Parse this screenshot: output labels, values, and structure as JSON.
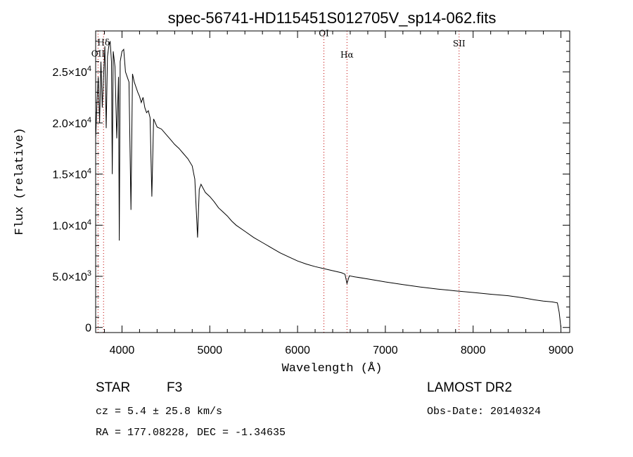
{
  "chart_data": {
    "type": "line",
    "title": "spec-56741-HD115451S012705V_sp14-062.fits",
    "xlabel": "Wavelength (Å)",
    "ylabel": "Flux (relative)",
    "xlim": [
      3700,
      9100
    ],
    "ylim": [
      -500,
      29000
    ],
    "x_ticks": [
      {
        "value": 4000,
        "label": "4000"
      },
      {
        "value": 5000,
        "label": "5000"
      },
      {
        "value": 6000,
        "label": "6000"
      },
      {
        "value": 7000,
        "label": "7000"
      },
      {
        "value": 8000,
        "label": "8000"
      },
      {
        "value": 9000,
        "label": "9000"
      }
    ],
    "y_ticks": [
      {
        "value": 0,
        "label": "0"
      },
      {
        "value": 5000,
        "label": "5.0×10",
        "exp": "3"
      },
      {
        "value": 10000,
        "label": "1.0×10",
        "exp": "4"
      },
      {
        "value": 15000,
        "label": "1.5×10",
        "exp": "4"
      },
      {
        "value": 20000,
        "label": "2.0×10",
        "exp": "4"
      },
      {
        "value": 25000,
        "label": "2.5×10",
        "exp": "4"
      }
    ],
    "grid": false,
    "lines": [
      {
        "label": "OII",
        "wavelength": 3727,
        "label_level": 26500
      },
      {
        "label": "Hδ",
        "wavelength": 3790,
        "label_level": 27600
      },
      {
        "label": "OI",
        "wavelength": 6300,
        "label_level": 28500
      },
      {
        "label": "Hα",
        "wavelength": 6563,
        "label_level": 26400
      },
      {
        "label": "SII",
        "wavelength": 7840,
        "label_level": 27500
      }
    ],
    "series": [
      {
        "x": [
          3700,
          3715,
          3730,
          3745,
          3760,
          3775,
          3790,
          3805,
          3820,
          3835,
          3850,
          3865,
          3880,
          3889,
          3900,
          3920,
          3940,
          3960,
          3969,
          3980,
          4000,
          4020,
          4040,
          4060,
          4080,
          4102,
          4120,
          4140,
          4160,
          4180,
          4200,
          4220,
          4240,
          4260,
          4280,
          4300,
          4320,
          4340,
          4360,
          4380,
          4400,
          4450,
          4500,
          4550,
          4600,
          4650,
          4700,
          4750,
          4800,
          4830,
          4861,
          4880,
          4900,
          4950,
          5000,
          5050,
          5100,
          5150,
          5200,
          5250,
          5300,
          5400,
          5500,
          5600,
          5700,
          5800,
          5900,
          6000,
          6100,
          6200,
          6300,
          6400,
          6500,
          6540,
          6563,
          6590,
          6650,
          6800,
          7000,
          7200,
          7400,
          7600,
          7800,
          8000,
          8200,
          8400,
          8500,
          8600,
          8700,
          8800,
          8900,
          8960,
          8980,
          9000
        ],
        "y": [
          18500,
          22000,
          24500,
          20000,
          26000,
          21500,
          24500,
          27500,
          19500,
          26500,
          27500,
          28000,
          26000,
          15000,
          27000,
          25500,
          18500,
          24500,
          8500,
          26000,
          27000,
          27200,
          25000,
          24500,
          24000,
          11500,
          24800,
          24000,
          23500,
          23000,
          22600,
          22000,
          22500,
          21500,
          21000,
          21200,
          20500,
          12800,
          20400,
          20000,
          19600,
          19400,
          18900,
          18400,
          17900,
          17500,
          17000,
          16500,
          15800,
          14500,
          8800,
          13500,
          14000,
          13200,
          12800,
          12300,
          11700,
          11300,
          10900,
          10400,
          10000,
          9400,
          8800,
          8300,
          7800,
          7300,
          6900,
          6500,
          6200,
          5950,
          5750,
          5550,
          5350,
          5200,
          4300,
          5050,
          4950,
          4750,
          4450,
          4200,
          3950,
          3750,
          3580,
          3420,
          3250,
          3100,
          2980,
          2850,
          2700,
          2580,
          2500,
          2400,
          1500,
          0
        ]
      }
    ]
  },
  "footer": {
    "object_class": "STAR",
    "subclass": "F3",
    "survey": "LAMOST DR2",
    "velocity": "cz = 5.4 ± 25.8 km/s",
    "obs_date": "Obs-Date: 20140324",
    "coordinates": "RA = 177.08228, DEC =  -1.34635"
  }
}
